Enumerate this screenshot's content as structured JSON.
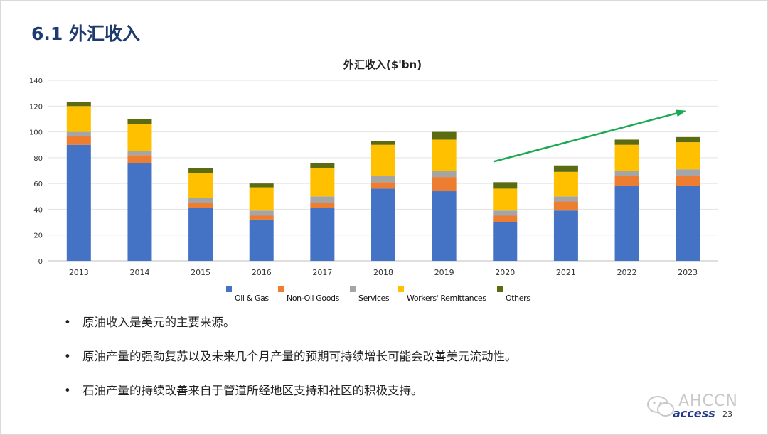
{
  "slide": {
    "title": "6.1 外汇收入",
    "page_number": "23",
    "logo": "access",
    "watermark": "AHCCN"
  },
  "bullets": [
    "原油收入是美元的主要来源。",
    "原油产量的强劲复苏以及未来几个月产量的预期可持续增长可能会改善美元流动性。",
    "石油产量的持续改善来自于管道所经地区支持和社区的积极支持。"
  ],
  "bullet_symbol": "•",
  "chart_data": {
    "type": "bar",
    "stacked": true,
    "title": "外汇收入($'bn)",
    "xlabel": "",
    "ylabel": "",
    "ylim": [
      0,
      140
    ],
    "yticks": [
      0,
      20,
      40,
      60,
      80,
      100,
      120,
      140
    ],
    "grid": true,
    "legend_position": "bottom",
    "categories": [
      "2013",
      "2014",
      "2015",
      "2016",
      "2017",
      "2018",
      "2019",
      "2020",
      "2021",
      "2022",
      "2023"
    ],
    "series": [
      {
        "name": "Oil & Gas",
        "color": "#4472c4",
        "values": [
          90,
          76,
          41,
          32,
          41,
          56,
          54,
          30,
          39,
          58,
          58
        ]
      },
      {
        "name": "Non-Oil Goods",
        "color": "#ed7d31",
        "values": [
          7,
          6,
          4,
          3,
          4,
          5,
          11,
          5,
          7,
          8,
          8
        ]
      },
      {
        "name": "Services",
        "color": "#a5a5a5",
        "values": [
          3,
          3,
          4,
          4,
          5,
          5,
          5,
          4,
          4,
          4,
          5
        ]
      },
      {
        "name": "Workers' Remittances",
        "color": "#ffc000",
        "values": [
          20,
          21,
          19,
          18,
          22,
          24,
          24,
          17,
          19,
          20,
          21
        ]
      },
      {
        "name": "Others",
        "color": "#5a6b12",
        "values": [
          3,
          4,
          4,
          3,
          4,
          3,
          6,
          5,
          5,
          4,
          4
        ]
      }
    ],
    "annotations": [
      {
        "type": "trend-arrow",
        "color": "#1aaa55",
        "from": {
          "category": "2020",
          "value": 77
        },
        "to": {
          "category": "2023",
          "value": 116
        }
      }
    ]
  }
}
